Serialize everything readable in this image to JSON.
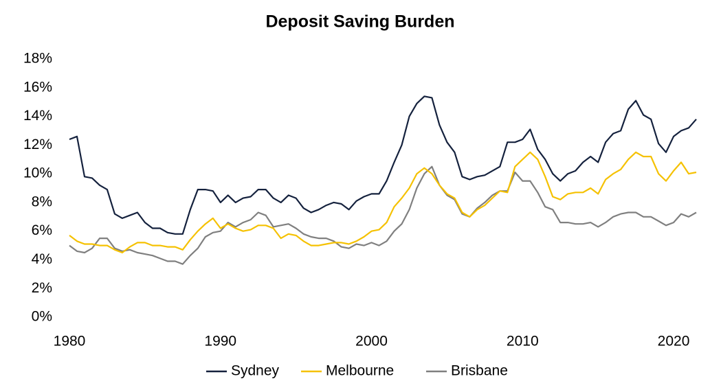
{
  "chart_data": {
    "type": "line",
    "title": "Deposit Saving Burden",
    "x": [
      1980,
      1980.5,
      1981,
      1981.5,
      1982,
      1982.5,
      1983,
      1983.5,
      1984,
      1984.5,
      1985,
      1985.5,
      1986,
      1986.5,
      1987,
      1987.5,
      1988,
      1988.5,
      1989,
      1989.5,
      1990,
      1990.5,
      1991,
      1991.5,
      1992,
      1992.5,
      1993,
      1993.5,
      1994,
      1994.5,
      1995,
      1995.5,
      1996,
      1996.5,
      1997,
      1997.5,
      1998,
      1998.5,
      1999,
      1999.5,
      2000,
      2000.5,
      2001,
      2001.5,
      2002,
      2002.5,
      2003,
      2003.5,
      2004,
      2004.5,
      2005,
      2005.5,
      2006,
      2006.5,
      2007,
      2007.5,
      2008,
      2008.5,
      2009,
      2009.5,
      2010,
      2010.5,
      2011,
      2011.5,
      2012,
      2012.5,
      2013,
      2013.5,
      2014,
      2014.5,
      2015,
      2015.5,
      2016,
      2016.5,
      2017,
      2017.5,
      2018,
      2018.5,
      2019,
      2019.5,
      2020,
      2020.5,
      2021,
      2021.5
    ],
    "series": [
      {
        "name": "Sydney",
        "color": "#14213d",
        "values": [
          12.4,
          12.6,
          9.8,
          9.7,
          9.2,
          8.9,
          7.2,
          6.9,
          7.1,
          7.3,
          6.6,
          6.2,
          6.2,
          5.9,
          5.8,
          5.8,
          7.5,
          8.9,
          8.9,
          8.8,
          8.0,
          8.5,
          8.0,
          8.3,
          8.4,
          8.9,
          8.9,
          8.3,
          8.0,
          8.5,
          8.3,
          7.6,
          7.3,
          7.5,
          7.8,
          8.0,
          7.9,
          7.5,
          8.1,
          8.4,
          8.6,
          8.6,
          9.5,
          10.8,
          12.0,
          14.0,
          14.9,
          15.4,
          15.3,
          13.4,
          12.2,
          11.5,
          9.8,
          9.6,
          9.8,
          9.9,
          10.2,
          10.5,
          12.2,
          12.2,
          12.4,
          13.1,
          11.7,
          11.0,
          10.0,
          9.5,
          10.0,
          10.2,
          10.8,
          11.2,
          10.8,
          12.2,
          12.8,
          13.0,
          14.5,
          15.1,
          14.1,
          13.8,
          12.1,
          11.5,
          12.6,
          13.0,
          13.2,
          13.8
        ]
      },
      {
        "name": "Melbourne",
        "color": "#f5c100",
        "values": [
          5.7,
          5.3,
          5.1,
          5.1,
          5.0,
          5.0,
          4.7,
          4.5,
          4.9,
          5.2,
          5.2,
          5.0,
          5.0,
          4.9,
          4.9,
          4.7,
          5.4,
          6.0,
          6.5,
          6.9,
          6.2,
          6.5,
          6.2,
          6.0,
          6.1,
          6.4,
          6.4,
          6.2,
          5.5,
          5.8,
          5.7,
          5.3,
          5.0,
          5.0,
          5.1,
          5.2,
          5.2,
          5.1,
          5.3,
          5.6,
          6.0,
          6.1,
          6.6,
          7.7,
          8.3,
          9.0,
          10.0,
          10.4,
          10.0,
          9.2,
          8.6,
          8.3,
          7.3,
          7.0,
          7.5,
          7.8,
          8.3,
          8.8,
          8.7,
          10.5,
          11.0,
          11.5,
          11.0,
          9.8,
          8.4,
          8.2,
          8.6,
          8.7,
          8.7,
          9.0,
          8.6,
          9.6,
          10.0,
          10.3,
          11.0,
          11.5,
          11.2,
          11.2,
          10.0,
          9.5,
          10.2,
          10.8,
          10.0,
          10.1
        ]
      },
      {
        "name": "Brisbane",
        "color": "#7f7f7f",
        "values": [
          5.0,
          4.6,
          4.5,
          4.8,
          5.5,
          5.5,
          4.8,
          4.6,
          4.7,
          4.5,
          4.4,
          4.3,
          4.1,
          3.9,
          3.9,
          3.7,
          4.3,
          4.8,
          5.6,
          5.9,
          6.0,
          6.6,
          6.3,
          6.6,
          6.8,
          7.3,
          7.1,
          6.3,
          6.4,
          6.5,
          6.2,
          5.8,
          5.6,
          5.5,
          5.5,
          5.3,
          4.9,
          4.8,
          5.1,
          5.0,
          5.2,
          5.0,
          5.3,
          6.0,
          6.5,
          7.5,
          9.0,
          10.0,
          10.5,
          9.2,
          8.5,
          8.2,
          7.2,
          7.0,
          7.6,
          8.0,
          8.5,
          8.8,
          8.8,
          10.1,
          9.5,
          9.5,
          8.7,
          7.7,
          7.5,
          6.6,
          6.6,
          6.5,
          6.5,
          6.6,
          6.3,
          6.6,
          7.0,
          7.2,
          7.3,
          7.3,
          7.0,
          7.0,
          6.7,
          6.4,
          6.6,
          7.2,
          7.0,
          7.3
        ]
      }
    ],
    "xlim": [
      1980,
      2021.5
    ],
    "xticks": [
      1980,
      1990,
      2000,
      2010,
      2020
    ],
    "ylim": [
      0,
      18
    ],
    "yticks": [
      {
        "value": 0,
        "label": "0%"
      },
      {
        "value": 2,
        "label": "2%"
      },
      {
        "value": 4,
        "label": "4%"
      },
      {
        "value": 6,
        "label": "6%"
      },
      {
        "value": 8,
        "label": "8%"
      },
      {
        "value": 10,
        "label": "10%"
      },
      {
        "value": 12,
        "label": "12%"
      },
      {
        "value": 14,
        "label": "14%"
      },
      {
        "value": 16,
        "label": "16%"
      },
      {
        "value": 18,
        "label": "18%"
      }
    ],
    "grid": false,
    "legend": "bottom"
  }
}
